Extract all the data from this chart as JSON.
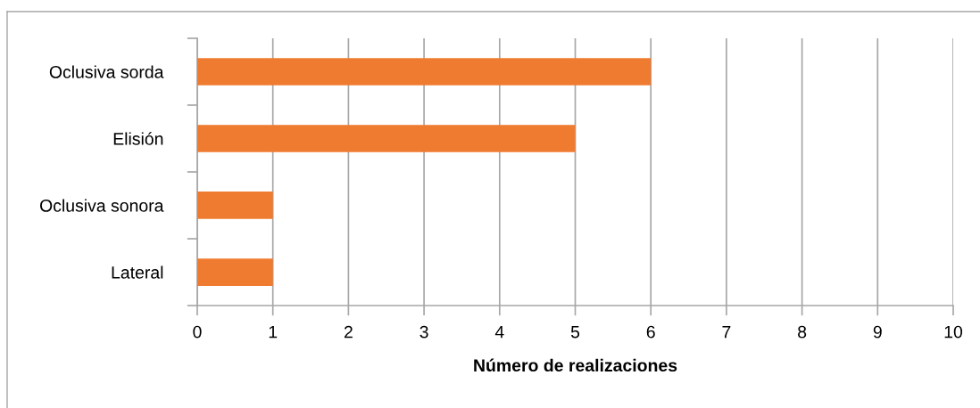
{
  "chart_data": {
    "type": "bar",
    "orientation": "horizontal",
    "categories": [
      "Oclusiva sorda",
      "Elisión",
      "Oclusiva sonora",
      "Lateral"
    ],
    "values": [
      6,
      5,
      1,
      1
    ],
    "color": "#ef7b30",
    "xlabel": "Número de realizaciones",
    "xlim": [
      0,
      10
    ],
    "xticks": [
      0,
      1,
      2,
      3,
      4,
      5,
      6,
      7,
      8,
      9,
      10
    ],
    "grid": "x"
  }
}
